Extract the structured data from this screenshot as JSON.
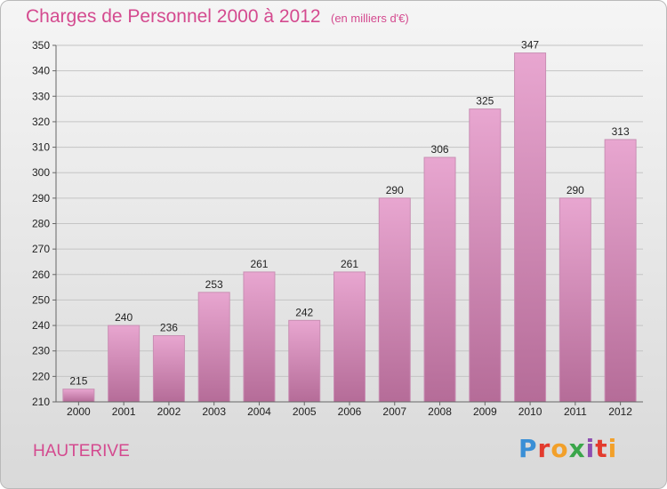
{
  "title": "Charges de Personnel 2000 à 2012",
  "subtitle": "(en milliers d'€)",
  "place": "HAUTERIVE",
  "brand": {
    "letters": [
      "P",
      "r",
      "o",
      "x",
      "i",
      "t",
      "i"
    ]
  },
  "colors": {
    "title": "#d44a8f",
    "bar_top": "#e8a6d0",
    "bar_bottom": "#b56c98"
  },
  "chart_data": {
    "type": "bar",
    "title": "Charges de Personnel 2000 à 2012",
    "categories": [
      "2000",
      "2001",
      "2002",
      "2003",
      "2004",
      "2005",
      "2006",
      "2007",
      "2008",
      "2009",
      "2010",
      "2011",
      "2012"
    ],
    "values": [
      215,
      240,
      236,
      253,
      261,
      242,
      261,
      290,
      306,
      325,
      347,
      290,
      313
    ],
    "ylim": [
      210,
      350
    ],
    "yticks": [
      210,
      220,
      230,
      240,
      250,
      260,
      270,
      280,
      290,
      300,
      310,
      320,
      330,
      340,
      350
    ],
    "grid": true,
    "xlabel": "",
    "ylabel": ""
  }
}
